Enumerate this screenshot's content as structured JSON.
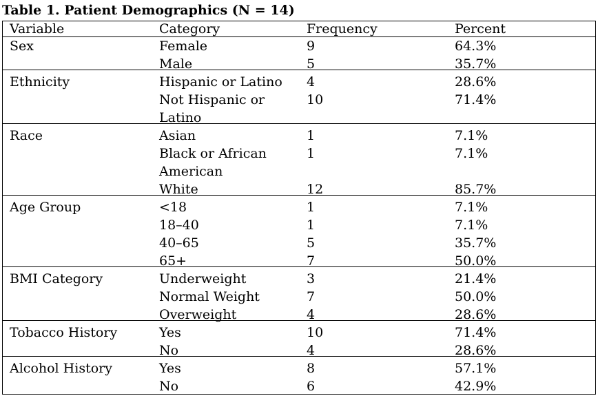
{
  "title": "Table 1. Patient Demographics (N = 14)",
  "headers": {
    "variable": "Variable",
    "category": "Category",
    "frequency": "Frequency",
    "percent": "Percent"
  },
  "rows": [
    {
      "variable": "Sex",
      "lines": [
        {
          "category": "Female",
          "frequency": "9",
          "percent": "64.3%"
        },
        {
          "category": "Male",
          "frequency": "5",
          "percent": "35.7%"
        }
      ]
    },
    {
      "variable": "Ethnicity",
      "lines": [
        {
          "category": "Hispanic or Latino",
          "frequency": "4",
          "percent": "28.6%"
        },
        {
          "category": "Not Hispanic or",
          "frequency": "10",
          "percent": "71.4%"
        },
        {
          "category": "Latino",
          "frequency": "",
          "percent": ""
        }
      ]
    },
    {
      "variable": "Race",
      "lines": [
        {
          "category": "Asian",
          "frequency": "1",
          "percent": "7.1%"
        },
        {
          "category": "Black or African",
          "frequency": "1",
          "percent": "7.1%"
        },
        {
          "category": "American",
          "frequency": "",
          "percent": ""
        },
        {
          "category": "White",
          "frequency": "12",
          "percent": "85.7%"
        }
      ]
    },
    {
      "variable": "Age Group",
      "lines": [
        {
          "category": "<18",
          "frequency": "1",
          "percent": "7.1%"
        },
        {
          "category": "18–40",
          "frequency": "1",
          "percent": "7.1%"
        },
        {
          "category": "40–65",
          "frequency": "5",
          "percent": "35.7%"
        },
        {
          "category": "65+",
          "frequency": "7",
          "percent": "50.0%"
        }
      ]
    },
    {
      "variable": "BMI Category",
      "lines": [
        {
          "category": "Underweight",
          "frequency": "3",
          "percent": "21.4%"
        },
        {
          "category": "Normal Weight",
          "frequency": "7",
          "percent": "50.0%"
        },
        {
          "category": "Overweight",
          "frequency": "4",
          "percent": "28.6%"
        }
      ]
    },
    {
      "variable": "Tobacco History",
      "lines": [
        {
          "category": "Yes",
          "frequency": "10",
          "percent": "71.4%"
        },
        {
          "category": "No",
          "frequency": "4",
          "percent": "28.6%"
        }
      ]
    },
    {
      "variable": "Alcohol History",
      "lines": [
        {
          "category": "Yes",
          "frequency": "8",
          "percent": "57.1%"
        },
        {
          "category": "No",
          "frequency": "6",
          "percent": "42.9%"
        }
      ]
    }
  ]
}
